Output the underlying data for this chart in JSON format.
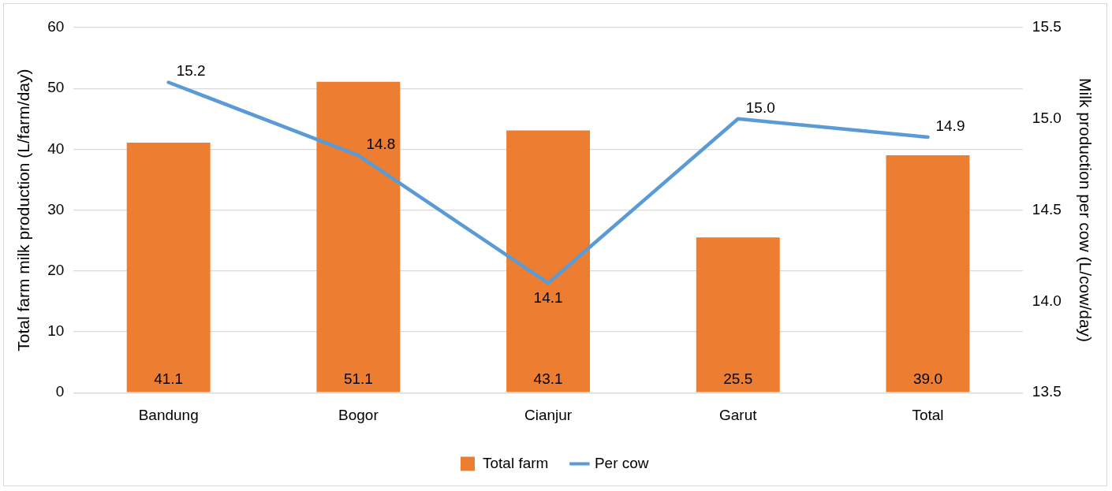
{
  "chart_data": {
    "type": "bar",
    "categories": [
      "Bandung",
      "Bogor",
      "Cianjur",
      "Garut",
      "Total"
    ],
    "ylabel": "Total farm milk production (L/farm/day)",
    "y2label": "Milk production per cow (L/cow/day)",
    "ylim": [
      0,
      60
    ],
    "yticks": [
      0,
      10,
      20,
      30,
      40,
      50,
      60
    ],
    "y2lim": [
      13.5,
      15.5
    ],
    "y2ticks": [
      13.5,
      {
        "value": 14,
        "label": "14.0"
      },
      14.5,
      {
        "value": 15,
        "label": "15.0"
      },
      15.5
    ],
    "grid": "y",
    "legend": "bottom",
    "marker": "none",
    "line_style": "solid",
    "series": [
      {
        "name": "Total farm",
        "color": "#ed7d31",
        "values": [
          41.1,
          51.1,
          43.1,
          25.5,
          39.0
        ],
        "value_labels": [
          "41.1",
          "51.1",
          "43.1",
          "25.5",
          "39.0"
        ]
      },
      {
        "name": "Per cow",
        "type": "line",
        "axis": "y2",
        "color": "#5b9bd5",
        "values": [
          15.2,
          14.8,
          14.1,
          15.0,
          14.9
        ],
        "value_labels": [
          "15.2",
          "14.8",
          "14.1",
          "15.0",
          "14.9"
        ]
      }
    ]
  }
}
